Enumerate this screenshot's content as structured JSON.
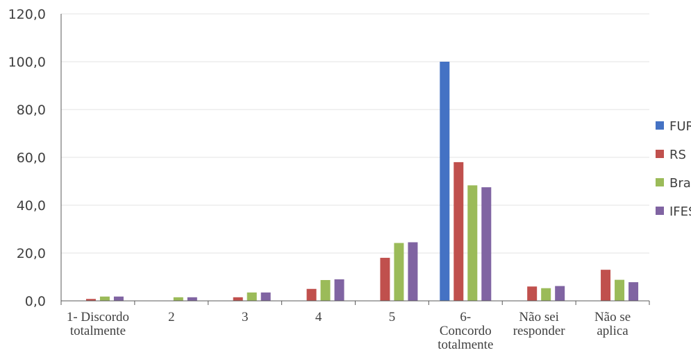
{
  "chart_data": {
    "type": "bar",
    "categories": [
      [
        "1- Discordo",
        "totalmente"
      ],
      [
        "2"
      ],
      [
        "3"
      ],
      [
        "4"
      ],
      [
        "5"
      ],
      [
        "6-",
        "Concordo",
        "totalmente"
      ],
      [
        "Não sei",
        "responder"
      ],
      [
        "Não se",
        "aplica"
      ]
    ],
    "series": [
      {
        "name": "FURG",
        "color": "#4472C4",
        "values": [
          0,
          0,
          0,
          0,
          0,
          100,
          0,
          0
        ]
      },
      {
        "name": "RS",
        "color": "#C0504D",
        "values": [
          0.8,
          0,
          1.5,
          5,
          18,
          58,
          6,
          13
        ]
      },
      {
        "name": "Brasil",
        "color": "#9BBB59",
        "values": [
          1.8,
          1.5,
          3.5,
          8.7,
          24.2,
          48.3,
          5.3,
          8.8
        ]
      },
      {
        "name": "IFES",
        "color": "#8064A2",
        "values": [
          1.8,
          1.5,
          3.5,
          9,
          24.5,
          47.5,
          6.2,
          7.8
        ]
      }
    ],
    "ylim": [
      0,
      120
    ],
    "yticks": [
      0,
      20,
      40,
      60,
      80,
      100,
      120
    ],
    "ytick_labels": [
      "0,0",
      "20,0",
      "40,0",
      "60,0",
      "80,0",
      "100,0",
      "120,0"
    ],
    "grid": true,
    "legend_position": "right",
    "title": "",
    "xlabel": "",
    "ylabel": ""
  }
}
